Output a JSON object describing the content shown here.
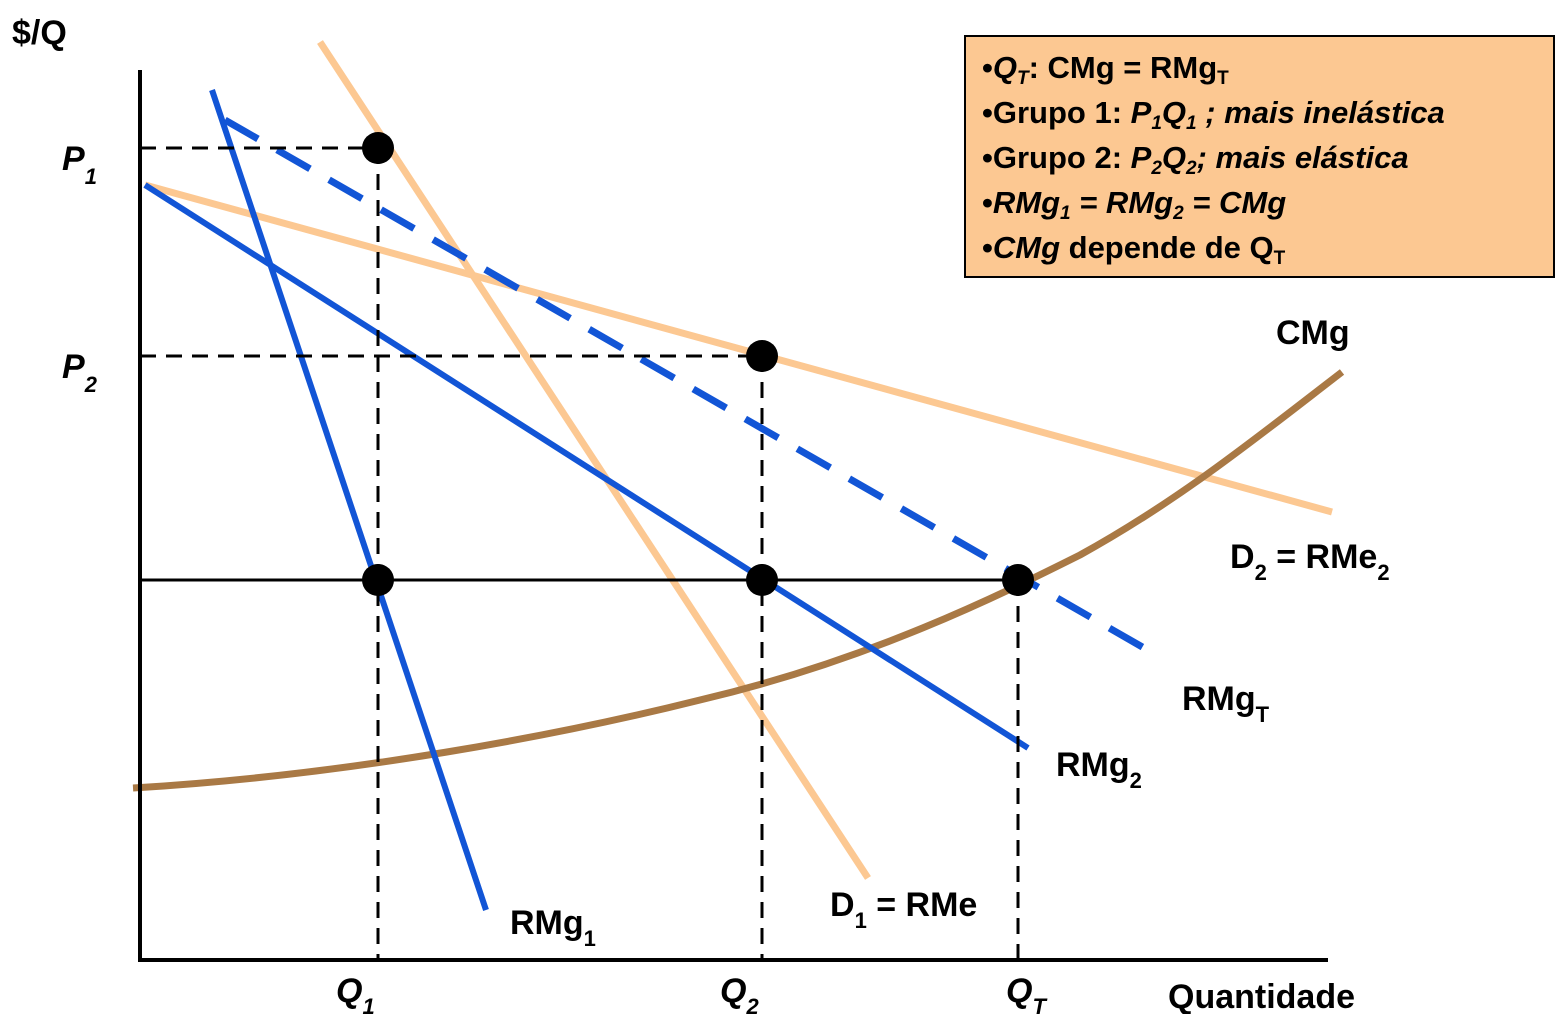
{
  "axes": {
    "y_label": "$/Q",
    "x_label": "Quantidade"
  },
  "ticks": {
    "p1": {
      "main": "P",
      "sub": "1"
    },
    "p2": {
      "main": "P",
      "sub": "2"
    },
    "q1": {
      "main": "Q",
      "sub": "1"
    },
    "q2": {
      "main": "Q",
      "sub": "2"
    },
    "qt": {
      "main": "Q",
      "sub": "T"
    }
  },
  "curves": {
    "rmg1": {
      "main": "RMg",
      "sub": "1"
    },
    "rmg2": {
      "main": "RMg",
      "sub": "2"
    },
    "rmgt": {
      "main": "RMg",
      "sub": "T"
    },
    "d1": {
      "main": "D",
      "sub": "1",
      "rest": " = RMe"
    },
    "d2": {
      "main": "D",
      "sub": "2",
      "rest": " = RMe",
      "rest_sub": "2"
    },
    "cmg": {
      "main": "CMg"
    }
  },
  "legend": {
    "bullet": "•",
    "l1": {
      "a": "Q",
      "a_sub": "T",
      "b": ": CMg = RMg",
      "b_sub": "T"
    },
    "l2": {
      "a": "Grupo 1: ",
      "b": "P",
      "b_sub": "1",
      "c": "Q",
      "c_sub": "1",
      "d": " ; mais inelástica"
    },
    "l3": {
      "a": "Grupo 2: ",
      "b": "P",
      "b_sub": "2",
      "c": "Q",
      "c_sub": "2",
      "d": "; mais elástica"
    },
    "l4": {
      "a": "RMg",
      "a_sub": "1",
      "b": " = RMg",
      "b_sub": "2",
      "c": " = CMg"
    },
    "l5": {
      "a": "CMg",
      "b": " depende de Q",
      "b_sub": "T"
    }
  },
  "colors": {
    "demand": "#fcc892",
    "marginal_revenue": "#1255d6",
    "marginal_cost": "#a97945",
    "axis": "#000000",
    "legend_bg": "#fcc892"
  }
}
